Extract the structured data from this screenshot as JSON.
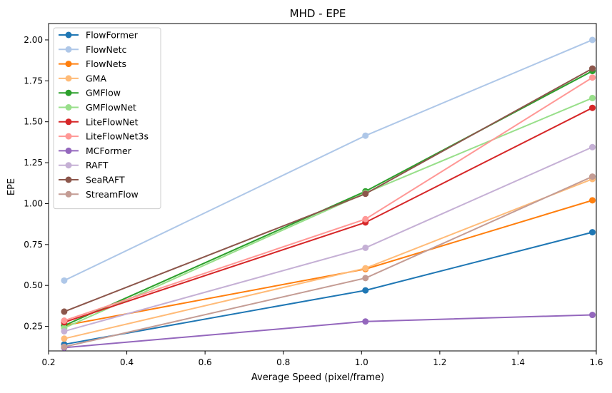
{
  "chart_data": {
    "type": "line",
    "title": "MHD - EPE",
    "xlabel": "Average Speed (pixel/frame)",
    "ylabel": "EPE",
    "xlim": [
      0.2,
      1.6
    ],
    "ylim": [
      0.1,
      2.1
    ],
    "xticks": [
      "0.2",
      "0.4",
      "0.6",
      "0.8",
      "1.0",
      "1.2",
      "1.4",
      "1.6"
    ],
    "yticks": [
      "0.25",
      "0.50",
      "0.75",
      "1.00",
      "1.25",
      "1.50",
      "1.75",
      "2.00"
    ],
    "grid": false,
    "legend_position": "top-left",
    "x": [
      0.24,
      1.01,
      1.59
    ],
    "series": [
      {
        "name": "FlowFormer",
        "color": "#1f77b4",
        "values": [
          0.14,
          0.47,
          0.825
        ]
      },
      {
        "name": "FlowNetc",
        "color": "#aec7e8",
        "values": [
          0.53,
          1.415,
          2.0
        ]
      },
      {
        "name": "FlowNets",
        "color": "#ff7f0e",
        "values": [
          0.255,
          0.6,
          1.02
        ]
      },
      {
        "name": "GMA",
        "color": "#ffbb78",
        "values": [
          0.175,
          0.605,
          1.15
        ]
      },
      {
        "name": "GMFlow",
        "color": "#2ca02c",
        "values": [
          0.255,
          1.075,
          1.81
        ]
      },
      {
        "name": "GMFlowNet",
        "color": "#98df8a",
        "values": [
          0.24,
          1.065,
          1.645
        ]
      },
      {
        "name": "LiteFlowNet",
        "color": "#d62728",
        "values": [
          0.275,
          0.885,
          1.585
        ]
      },
      {
        "name": "LiteFlowNet3s",
        "color": "#ff9896",
        "values": [
          0.285,
          0.905,
          1.77
        ]
      },
      {
        "name": "MCFormer",
        "color": "#9467bd",
        "values": [
          0.12,
          0.28,
          0.32
        ]
      },
      {
        "name": "RAFT",
        "color": "#c5b0d5",
        "values": [
          0.22,
          0.73,
          1.345
        ]
      },
      {
        "name": "SeaRAFT",
        "color": "#8c564b",
        "values": [
          0.34,
          1.06,
          1.825
        ]
      },
      {
        "name": "StreamFlow",
        "color": "#c49c94",
        "values": [
          0.125,
          0.545,
          1.165
        ]
      }
    ]
  }
}
